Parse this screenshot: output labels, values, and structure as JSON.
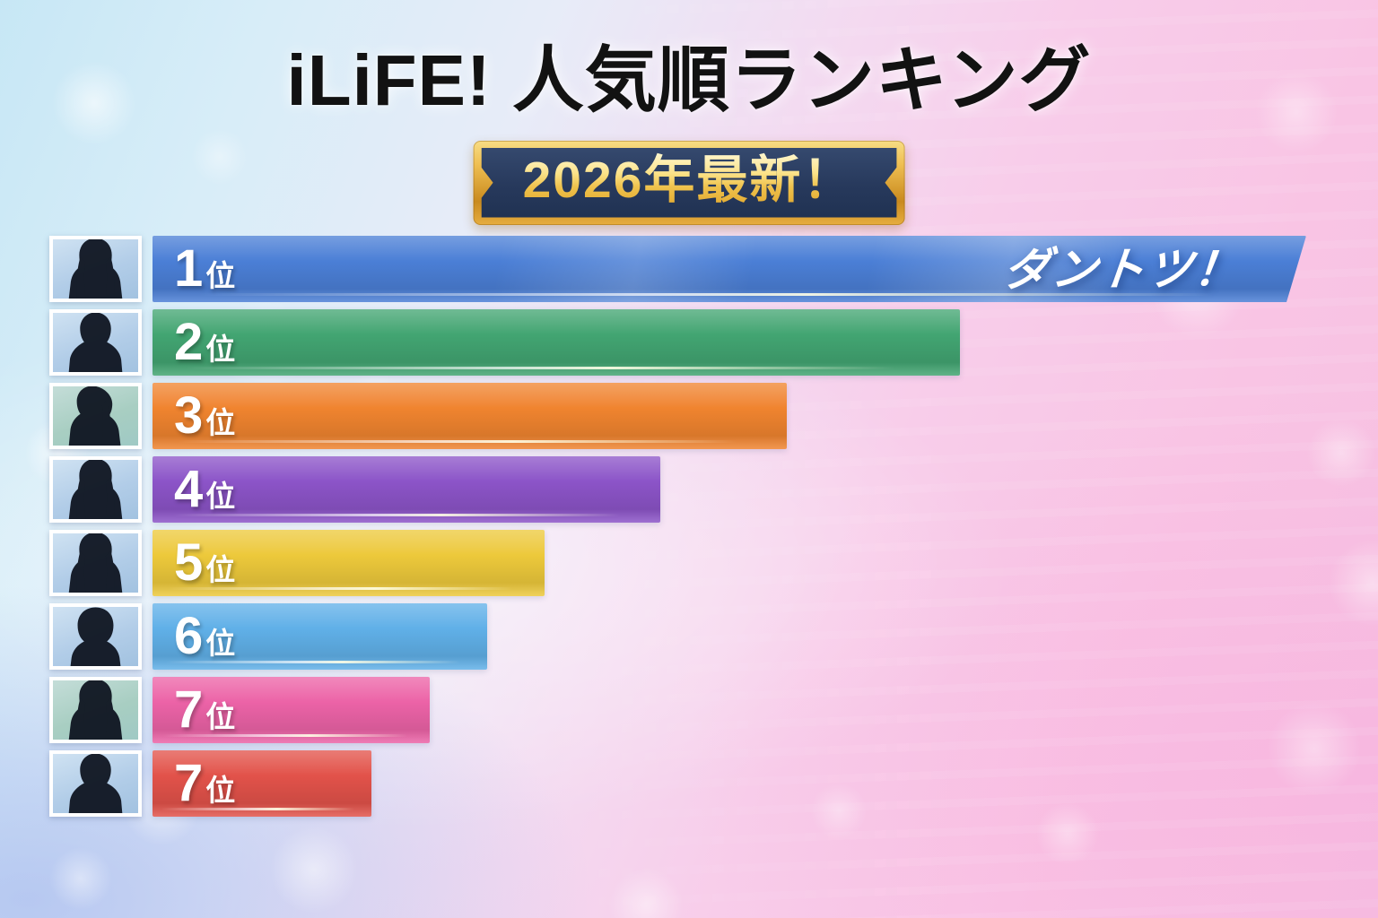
{
  "header": {
    "title": "iLiFE!  人気順ランキング",
    "badge": "2026年最新！"
  },
  "chart_data": {
    "type": "bar",
    "orientation": "horizontal",
    "title": "iLiFE!  人気順ランキング",
    "subtitle_badge": "2026年最新！",
    "categories": [
      "1位",
      "2位",
      "3位",
      "4位",
      "5位",
      "6位",
      "7位",
      "7位"
    ],
    "values": [
      100,
      70,
      55,
      44,
      34,
      29,
      24,
      19
    ],
    "value_unit": "relative bar length, % of longest bar (no numeric axis shown)",
    "annotations": [
      {
        "row_index": 0,
        "text": "ダントツ！"
      }
    ],
    "colors": [
      "#4b7fd6",
      "#42a572",
      "#f0842f",
      "#8c54c8",
      "#edc93b",
      "#60b0e8",
      "#ec63a7",
      "#e2524a"
    ],
    "grid": false,
    "legend": "none",
    "axis_labels": "none"
  },
  "avatars": [
    {
      "icon": "female-long-hair-silhouette-icon",
      "bg": "sky"
    },
    {
      "icon": "short-hair-silhouette-icon",
      "bg": "sky"
    },
    {
      "icon": "side-profile-silhouette-icon",
      "bg": "teal"
    },
    {
      "icon": "female-long-hair-silhouette-icon",
      "bg": "sky"
    },
    {
      "icon": "female-long-hair-silhouette-icon",
      "bg": "sky"
    },
    {
      "icon": "bob-hair-silhouette-icon",
      "bg": "sky"
    },
    {
      "icon": "female-long-hair-silhouette-icon",
      "bg": "teal"
    },
    {
      "icon": "short-hair-silhouette-icon",
      "bg": "sky"
    }
  ]
}
